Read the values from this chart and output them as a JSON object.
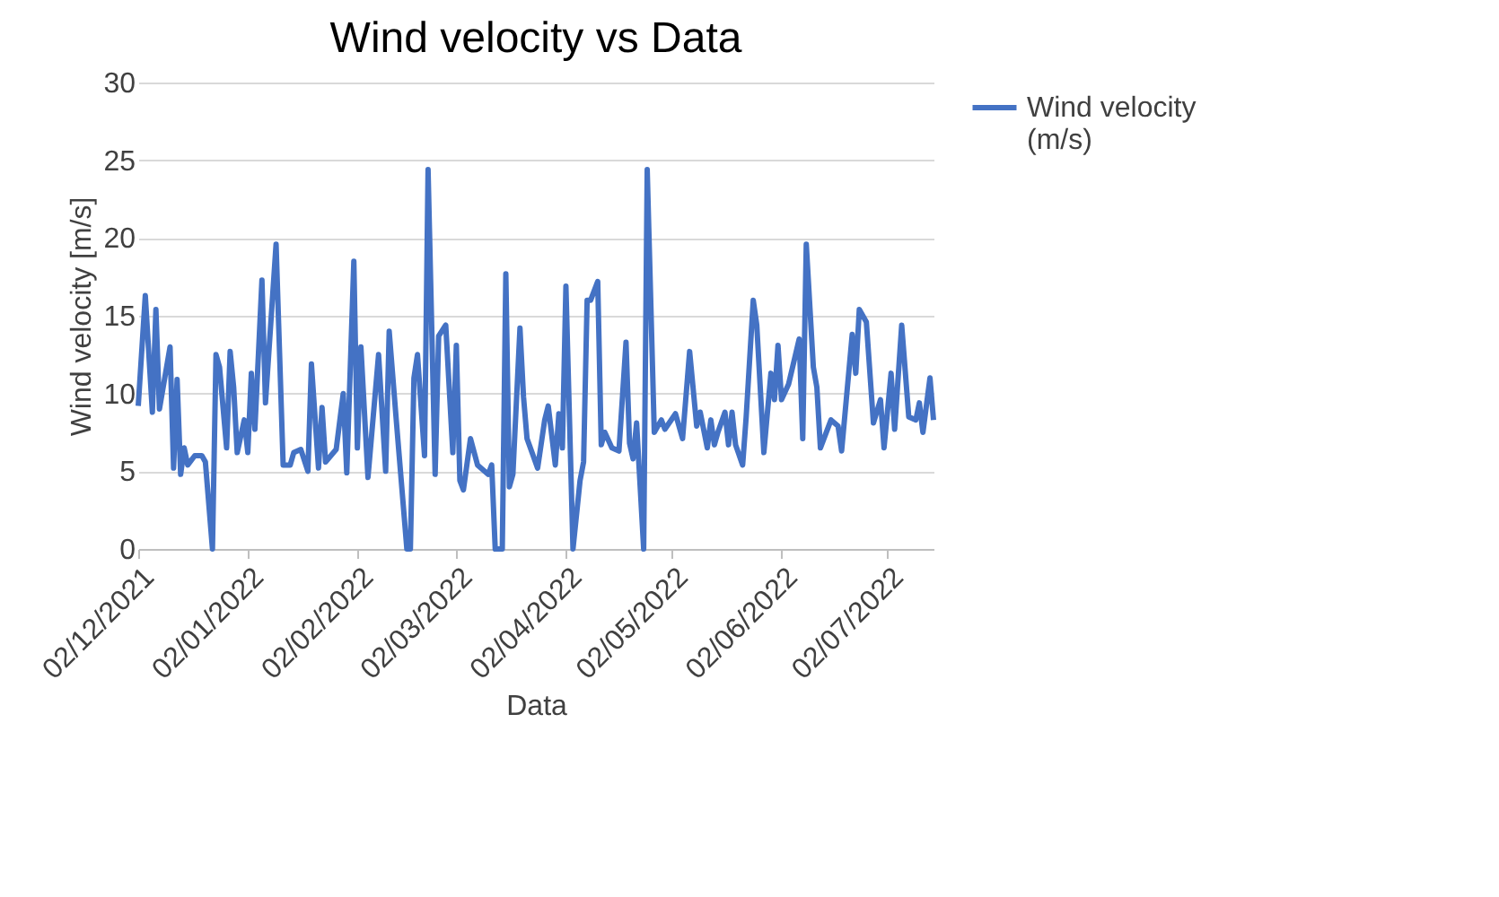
{
  "chart_data": {
    "type": "line",
    "title": "Wind velocity vs Data",
    "xlabel": "Data",
    "ylabel": "Wind velocity [m/s]",
    "x": [
      "2021-12-02",
      "2021-12-04",
      "2021-12-06",
      "2021-12-07",
      "2021-12-08",
      "2021-12-11",
      "2021-12-12",
      "2021-12-13",
      "2021-12-14",
      "2021-12-15",
      "2021-12-16",
      "2021-12-18",
      "2021-12-20",
      "2021-12-21",
      "2021-12-23",
      "2021-12-24",
      "2021-12-25",
      "2021-12-27",
      "2021-12-28",
      "2021-12-29",
      "2021-12-30",
      "2022-01-01",
      "2022-01-02",
      "2022-01-03",
      "2022-01-04",
      "2022-01-06",
      "2022-01-07",
      "2022-01-10",
      "2022-01-12",
      "2022-01-14",
      "2022-01-15",
      "2022-01-17",
      "2022-01-19",
      "2022-01-20",
      "2022-01-22",
      "2022-01-23",
      "2022-01-24",
      "2022-01-27",
      "2022-01-29",
      "2022-01-30",
      "2022-02-01",
      "2022-02-02",
      "2022-02-03",
      "2022-02-05",
      "2022-02-08",
      "2022-02-10",
      "2022-02-11",
      "2022-02-13",
      "2022-02-16",
      "2022-02-17",
      "2022-02-18",
      "2022-02-19",
      "2022-02-21",
      "2022-02-22",
      "2022-02-24",
      "2022-02-25",
      "2022-02-27",
      "2022-03-01",
      "2022-03-02",
      "2022-03-03",
      "2022-03-04",
      "2022-03-06",
      "2022-03-08",
      "2022-03-11",
      "2022-03-12",
      "2022-03-13",
      "2022-03-15",
      "2022-03-16",
      "2022-03-17",
      "2022-03-18",
      "2022-03-20",
      "2022-03-21",
      "2022-03-22",
      "2022-03-25",
      "2022-03-27",
      "2022-03-28",
      "2022-03-30",
      "2022-03-31",
      "2022-04-01",
      "2022-04-02",
      "2022-04-04",
      "2022-04-06",
      "2022-04-07",
      "2022-04-08",
      "2022-04-09",
      "2022-04-11",
      "2022-04-12",
      "2022-04-13",
      "2022-04-15",
      "2022-04-17",
      "2022-04-19",
      "2022-04-20",
      "2022-04-21",
      "2022-04-22",
      "2022-04-24",
      "2022-04-25",
      "2022-04-27",
      "2022-04-29",
      "2022-04-30",
      "2022-05-03",
      "2022-05-05",
      "2022-05-07",
      "2022-05-09",
      "2022-05-10",
      "2022-05-12",
      "2022-05-13",
      "2022-05-14",
      "2022-05-15",
      "2022-05-17",
      "2022-05-18",
      "2022-05-19",
      "2022-05-20",
      "2022-05-22",
      "2022-05-23",
      "2022-05-25",
      "2022-05-26",
      "2022-05-28",
      "2022-05-30",
      "2022-05-31",
      "2022-06-01",
      "2022-06-02",
      "2022-06-04",
      "2022-06-07",
      "2022-06-08",
      "2022-06-09",
      "2022-06-11",
      "2022-06-12",
      "2022-06-13",
      "2022-06-16",
      "2022-06-18",
      "2022-06-19",
      "2022-06-22",
      "2022-06-23",
      "2022-06-24",
      "2022-06-26",
      "2022-06-28",
      "2022-06-30",
      "2022-07-01",
      "2022-07-03",
      "2022-07-04",
      "2022-07-06",
      "2022-07-08",
      "2022-07-10",
      "2022-07-11",
      "2022-07-12",
      "2022-07-14",
      "2022-07-15"
    ],
    "series": [
      {
        "name": "Wind velocity (m/s)",
        "color": "#4472c4",
        "values": [
          9.2,
          16.3,
          8.8,
          15.4,
          9.0,
          13.0,
          5.2,
          10.9,
          4.8,
          6.5,
          5.4,
          6.0,
          6.0,
          5.6,
          0,
          12.5,
          11.7,
          6.5,
          12.7,
          10.4,
          6.2,
          8.3,
          6.2,
          11.3,
          7.7,
          17.3,
          9.4,
          19.6,
          5.4,
          5.4,
          6.2,
          6.4,
          5.0,
          11.9,
          5.2,
          9.1,
          5.6,
          6.4,
          10.0,
          4.9,
          18.5,
          6.5,
          13.0,
          4.6,
          12.5,
          5.0,
          14.0,
          8.3,
          0,
          0,
          11.0,
          12.5,
          6.0,
          24.4,
          4.8,
          13.7,
          14.4,
          6.2,
          13.1,
          4.4,
          3.8,
          7.1,
          5.4,
          4.8,
          5.4,
          0,
          0,
          17.7,
          4.0,
          4.8,
          14.2,
          9.8,
          7.1,
          5.2,
          8.3,
          9.2,
          5.4,
          8.7,
          6.5,
          16.9,
          0,
          4.4,
          5.6,
          16.0,
          16.0,
          17.2,
          6.7,
          7.5,
          6.5,
          6.3,
          13.3,
          6.8,
          5.8,
          8.1,
          0,
          24.4,
          7.5,
          8.3,
          7.7,
          8.7,
          7.1,
          12.7,
          7.9,
          8.8,
          6.5,
          8.3,
          6.7,
          7.5,
          8.8,
          6.7,
          8.8,
          6.7,
          5.4,
          8.5,
          16.0,
          14.4,
          6.2,
          11.3,
          9.6,
          13.1,
          9.6,
          10.6,
          13.5,
          7.1,
          19.6,
          11.7,
          10.4,
          6.5,
          8.3,
          7.9,
          6.3,
          13.8,
          11.3,
          15.4,
          14.6,
          8.1,
          9.6,
          6.5,
          11.3,
          7.7,
          14.4,
          8.5,
          8.3,
          9.4,
          7.5,
          11.0,
          8.3
        ]
      }
    ],
    "xlim": [
      "2021-12-02",
      "2022-07-15"
    ],
    "xticks": [
      {
        "value": "2021-12-02",
        "label": "02/12/2021"
      },
      {
        "value": "2022-01-02",
        "label": "02/01/2022"
      },
      {
        "value": "2022-02-02",
        "label": "02/02/2022"
      },
      {
        "value": "2022-03-02",
        "label": "02/03/2022"
      },
      {
        "value": "2022-04-02",
        "label": "02/04/2022"
      },
      {
        "value": "2022-05-02",
        "label": "02/05/2022"
      },
      {
        "value": "2022-06-02",
        "label": "02/06/2022"
      },
      {
        "value": "2022-07-02",
        "label": "02/07/2022"
      }
    ],
    "ylim": [
      0,
      30
    ],
    "yticks": [
      0,
      5,
      10,
      15,
      20,
      25,
      30
    ],
    "grid": "y",
    "legend": "right",
    "marker": "none",
    "line_style": "solid"
  }
}
